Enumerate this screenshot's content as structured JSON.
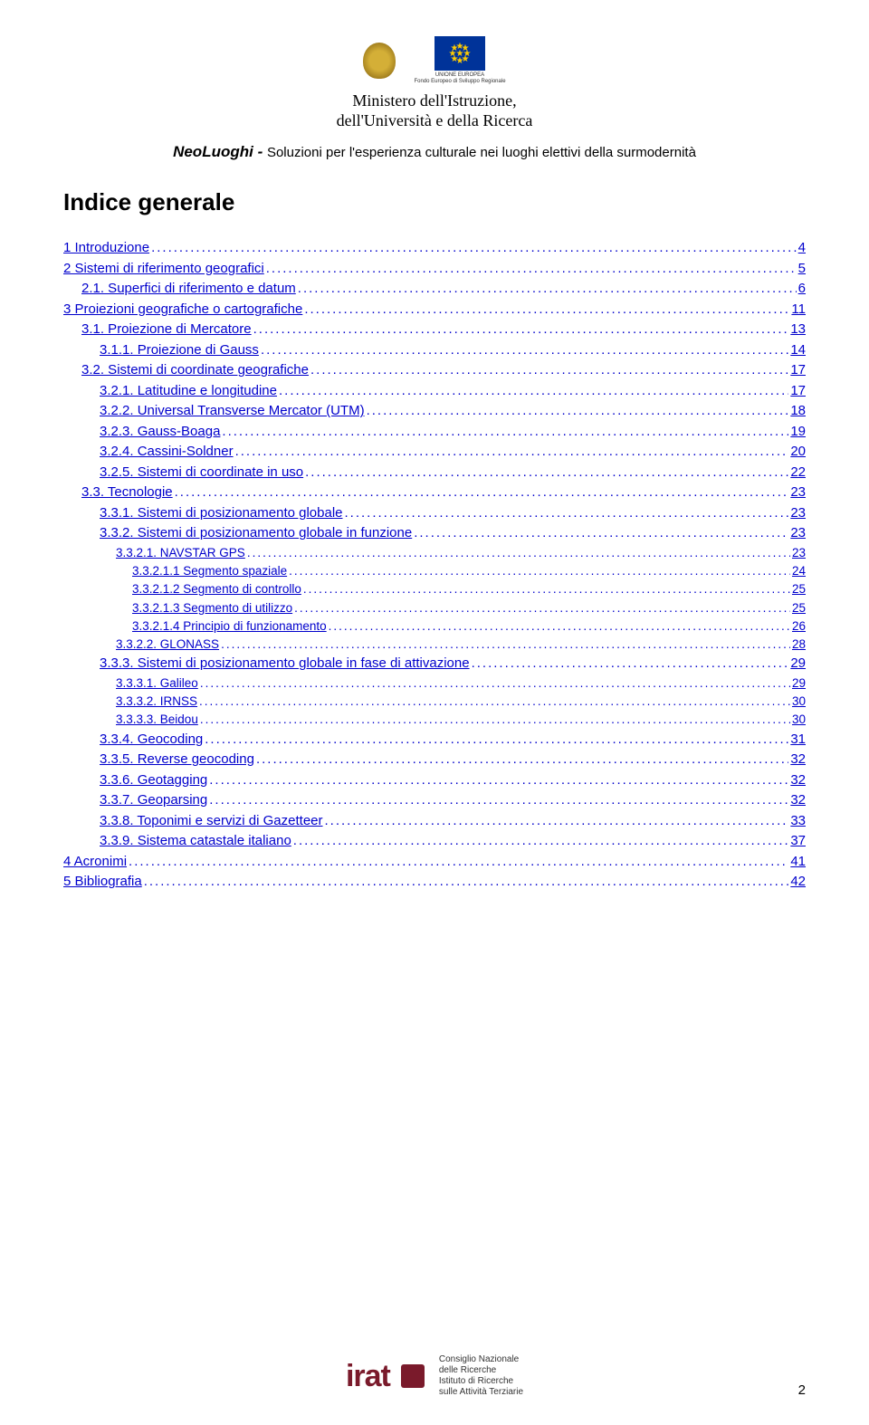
{
  "header": {
    "ministry_line1": "Ministero dell'Istruzione,",
    "ministry_line2": "dell'Università e della Ricerca",
    "eu_caption1": "UNIONE EUROPEA",
    "eu_caption2": "Fondo Europeo di Sviluppo Regionale",
    "project_title": "NeoLuoghi",
    "project_dash": " - ",
    "project_subtitle": "Soluzioni per l'esperienza culturale nei luoghi elettivi della surmodernità"
  },
  "section_title": "Indice generale",
  "toc": [
    {
      "level": 0,
      "label": "1  Introduzione",
      "page": "4"
    },
    {
      "level": 0,
      "label": "2  Sistemi di riferimento geografici",
      "page": "5"
    },
    {
      "level": 1,
      "label": "2.1.  Superfici di riferimento e datum",
      "page": "6"
    },
    {
      "level": 0,
      "label": "3  Proiezioni geografiche o cartografiche",
      "page": "11"
    },
    {
      "level": 1,
      "label": "3.1.  Proiezione di Mercatore",
      "page": "13"
    },
    {
      "level": 2,
      "label": "3.1.1. Proiezione di Gauss",
      "page": "14"
    },
    {
      "level": 1,
      "label": "3.2.  Sistemi di coordinate geografiche",
      "page": "17"
    },
    {
      "level": 2,
      "label": "3.2.1. Latitudine e longitudine",
      "page": "17"
    },
    {
      "level": 2,
      "label": "3.2.2. Universal Transverse Mercator (UTM)",
      "page": "18"
    },
    {
      "level": 2,
      "label": "3.2.3. Gauss-Boaga",
      "page": "19"
    },
    {
      "level": 2,
      "label": "3.2.4. Cassini-Soldner",
      "page": "20"
    },
    {
      "level": 2,
      "label": "3.2.5. Sistemi di coordinate in uso",
      "page": "22"
    },
    {
      "level": 1,
      "label": "3.3.  Tecnologie",
      "page": "23"
    },
    {
      "level": 2,
      "label": "3.3.1. Sistemi di posizionamento globale",
      "page": "23"
    },
    {
      "level": 2,
      "label": "3.3.2. Sistemi di posizionamento globale in funzione",
      "page": "23"
    },
    {
      "level": 3,
      "label": "3.3.2.1. NAVSTAR GPS",
      "page": "23"
    },
    {
      "level": 4,
      "label": "3.3.2.1.1 Segmento spaziale",
      "page": "24"
    },
    {
      "level": 4,
      "label": "3.3.2.1.2 Segmento di controllo",
      "page": "25"
    },
    {
      "level": 4,
      "label": "3.3.2.1.3 Segmento di utilizzo",
      "page": "25"
    },
    {
      "level": 4,
      "label": "3.3.2.1.4 Principio di funzionamento",
      "page": "26"
    },
    {
      "level": 3,
      "label": "3.3.2.2. GLONASS",
      "page": "28"
    },
    {
      "level": 2,
      "label": "3.3.3. Sistemi di posizionamento globale in fase di attivazione",
      "page": "29"
    },
    {
      "level": 3,
      "label": "3.3.3.1. Galileo",
      "page": "29"
    },
    {
      "level": 3,
      "label": "3.3.3.2. IRNSS",
      "page": "30"
    },
    {
      "level": 3,
      "label": "3.3.3.3. Beidou",
      "page": "30"
    },
    {
      "level": 2,
      "label": "3.3.4. Geocoding",
      "page": "31"
    },
    {
      "level": 2,
      "label": "3.3.5. Reverse geocoding",
      "page": "32"
    },
    {
      "level": 2,
      "label": "3.3.6. Geotagging",
      "page": "32"
    },
    {
      "level": 2,
      "label": "3.3.7. Geoparsing",
      "page": "32"
    },
    {
      "level": 2,
      "label": "3.3.8. Toponimi e servizi di Gazetteer",
      "page": "33"
    },
    {
      "level": 2,
      "label": "3.3.9. Sistema catastale italiano",
      "page": "37"
    },
    {
      "level": 0,
      "label": "4  Acronimi",
      "page": "41"
    },
    {
      "level": 0,
      "label": "5  Bibliografia",
      "page": "42"
    }
  ],
  "footer": {
    "irat": "irat",
    "cnr_line1": "Consiglio Nazionale",
    "cnr_line2": "delle Ricerche",
    "cnr_line3": "Istituto di Ricerche",
    "cnr_line4": "sulle Attività Terziarie",
    "page_number": "2"
  },
  "colors": {
    "link": "#0000cc",
    "text": "#000000",
    "irat": "#7a1a2b",
    "eu_blue": "#003399",
    "eu_gold": "#ffcc00",
    "background": "#ffffff"
  }
}
